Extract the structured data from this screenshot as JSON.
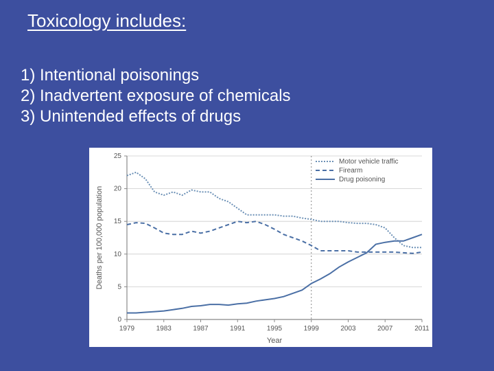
{
  "title": "Toxicology includes:",
  "list_items": [
    "1) Intentional poisonings",
    "2) Inadvertent exposure of chemicals",
    "3) Unintended effects of drugs"
  ],
  "chart": {
    "type": "line",
    "background_color": "#ffffff",
    "axis_color": "#888888",
    "grid_color": "#cccccc",
    "text_color": "#555555",
    "y_label": "Deaths per 100,000 population",
    "x_label": "Year",
    "y_lim": [
      0,
      25
    ],
    "y_ticks": [
      0,
      5,
      10,
      15,
      20,
      25
    ],
    "x_ticks": [
      1979,
      1983,
      1987,
      1991,
      1995,
      1999,
      2003,
      2007,
      2011
    ],
    "vline_x": 1999,
    "vline_style": "dotted",
    "label_fontsize": 11,
    "tick_fontsize": 10,
    "legend_fontsize": 10,
    "line_width": 2,
    "series": [
      {
        "name": "Motor vehicle traffic",
        "color": "#6a8fb5",
        "dash": "2,2",
        "years": [
          1979,
          1980,
          1981,
          1982,
          1983,
          1984,
          1985,
          1986,
          1987,
          1988,
          1989,
          1990,
          1991,
          1992,
          1993,
          1994,
          1995,
          1996,
          1997,
          1998,
          1999,
          2000,
          2001,
          2002,
          2003,
          2004,
          2005,
          2006,
          2007,
          2008,
          2009,
          2010,
          2011
        ],
        "values": [
          22.0,
          22.5,
          21.5,
          19.5,
          19.0,
          19.5,
          19.0,
          19.8,
          19.5,
          19.5,
          18.5,
          18.0,
          17.0,
          16.0,
          16.0,
          16.0,
          16.0,
          15.8,
          15.8,
          15.5,
          15.3,
          15.0,
          15.0,
          15.0,
          14.8,
          14.7,
          14.7,
          14.5,
          14.0,
          12.5,
          11.3,
          11.0,
          11.0
        ]
      },
      {
        "name": "Firearm",
        "color": "#4a6fa5",
        "dash": "6,4",
        "years": [
          1979,
          1980,
          1981,
          1982,
          1983,
          1984,
          1985,
          1986,
          1987,
          1988,
          1989,
          1990,
          1991,
          1992,
          1993,
          1994,
          1995,
          1996,
          1997,
          1998,
          1999,
          2000,
          2001,
          2002,
          2003,
          2004,
          2005,
          2006,
          2007,
          2008,
          2009,
          2010,
          2011
        ],
        "values": [
          14.5,
          14.8,
          14.7,
          14.0,
          13.2,
          13.0,
          13.0,
          13.5,
          13.2,
          13.5,
          14.0,
          14.5,
          15.0,
          14.8,
          15.0,
          14.5,
          13.8,
          13.0,
          12.5,
          12.0,
          11.3,
          10.5,
          10.5,
          10.5,
          10.5,
          10.3,
          10.3,
          10.3,
          10.3,
          10.3,
          10.2,
          10.1,
          10.3
        ]
      },
      {
        "name": "Drug poisoning",
        "color": "#4a6fa5",
        "dash": "none",
        "years": [
          1979,
          1980,
          1981,
          1982,
          1983,
          1984,
          1985,
          1986,
          1987,
          1988,
          1989,
          1990,
          1991,
          1992,
          1993,
          1994,
          1995,
          1996,
          1997,
          1998,
          1999,
          2000,
          2001,
          2002,
          2003,
          2004,
          2005,
          2006,
          2007,
          2008,
          2009,
          2010,
          2011
        ],
        "values": [
          1.0,
          1.0,
          1.1,
          1.2,
          1.3,
          1.5,
          1.7,
          2.0,
          2.1,
          2.3,
          2.3,
          2.2,
          2.4,
          2.5,
          2.8,
          3.0,
          3.2,
          3.5,
          4.0,
          4.5,
          5.5,
          6.2,
          7.0,
          8.0,
          8.8,
          9.5,
          10.2,
          11.5,
          11.8,
          12.0,
          12.0,
          12.5,
          13.0
        ]
      }
    ]
  }
}
